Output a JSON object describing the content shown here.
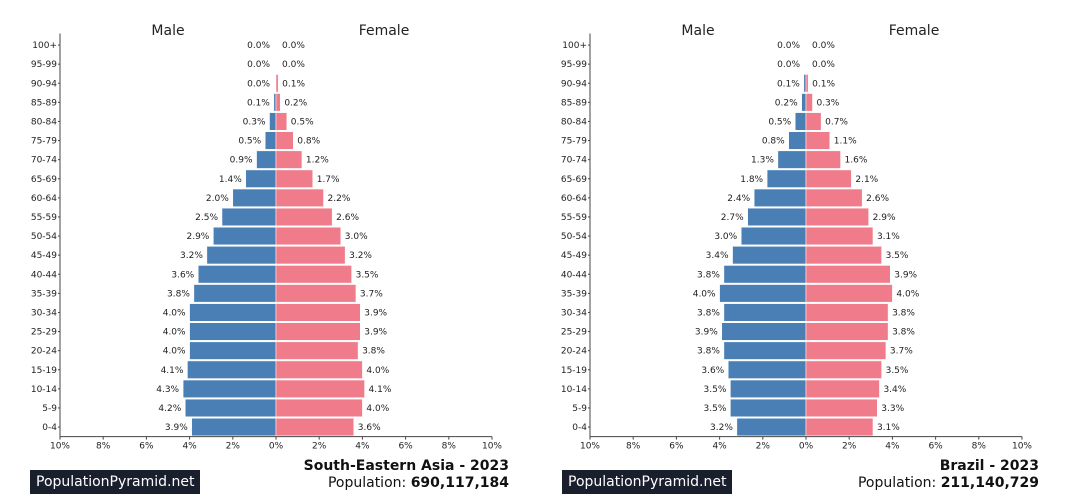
{
  "chart_data": [
    {
      "type": "bar",
      "orientation": "horizontal-pyramid",
      "title": "South-Eastern Asia - 2023",
      "population_label": "Population:",
      "population_value": "690,117,184",
      "brand": "PopulationPyramid.net",
      "left_header": "Male",
      "right_header": "Female",
      "categories": [
        "100+",
        "95-99",
        "90-94",
        "85-89",
        "80-84",
        "75-79",
        "70-74",
        "65-69",
        "60-64",
        "55-59",
        "50-54",
        "45-49",
        "40-44",
        "35-39",
        "30-34",
        "25-29",
        "20-24",
        "15-19",
        "10-14",
        "5-9",
        "0-4"
      ],
      "series": [
        {
          "name": "Male",
          "values": [
            0.0,
            0.0,
            0.0,
            0.1,
            0.3,
            0.5,
            0.9,
            1.4,
            2.0,
            2.5,
            2.9,
            3.2,
            3.6,
            3.8,
            4.0,
            4.0,
            4.0,
            4.1,
            4.3,
            4.2,
            3.9
          ]
        },
        {
          "name": "Female",
          "values": [
            0.0,
            0.0,
            0.1,
            0.2,
            0.5,
            0.8,
            1.2,
            1.7,
            2.2,
            2.6,
            3.0,
            3.2,
            3.5,
            3.7,
            3.9,
            3.9,
            3.8,
            4.0,
            4.1,
            4.0,
            3.6
          ]
        }
      ],
      "xticks": [
        "10%",
        "8%",
        "6%",
        "4%",
        "2%",
        "0%",
        "2%",
        "4%",
        "6%",
        "8%",
        "10%"
      ],
      "xlim": [
        -10,
        10
      ]
    },
    {
      "type": "bar",
      "orientation": "horizontal-pyramid",
      "title": "Brazil - 2023",
      "population_label": "Population:",
      "population_value": "211,140,729",
      "brand": "PopulationPyramid.net",
      "left_header": "Male",
      "right_header": "Female",
      "categories": [
        "100+",
        "95-99",
        "90-94",
        "85-89",
        "80-84",
        "75-79",
        "70-74",
        "65-69",
        "60-64",
        "55-59",
        "50-54",
        "45-49",
        "40-44",
        "35-39",
        "30-34",
        "25-29",
        "20-24",
        "15-19",
        "10-14",
        "5-9",
        "0-4"
      ],
      "series": [
        {
          "name": "Male",
          "values": [
            0.0,
            0.0,
            0.1,
            0.2,
            0.5,
            0.8,
            1.3,
            1.8,
            2.4,
            2.7,
            3.0,
            3.4,
            3.8,
            4.0,
            3.8,
            3.9,
            3.8,
            3.6,
            3.5,
            3.5,
            3.2
          ]
        },
        {
          "name": "Female",
          "values": [
            0.0,
            0.0,
            0.1,
            0.3,
            0.7,
            1.1,
            1.6,
            2.1,
            2.6,
            2.9,
            3.1,
            3.5,
            3.9,
            4.0,
            3.8,
            3.8,
            3.7,
            3.5,
            3.4,
            3.3,
            3.1
          ]
        }
      ],
      "xticks": [
        "10%",
        "8%",
        "6%",
        "4%",
        "2%",
        "0%",
        "2%",
        "4%",
        "6%",
        "8%",
        "10%"
      ],
      "xlim": [
        -10,
        10
      ]
    }
  ],
  "colors": {
    "male": "#4a7fb5",
    "female": "#ef7b8b",
    "text": "#222222",
    "brand_bg": "#1a1f2e"
  }
}
